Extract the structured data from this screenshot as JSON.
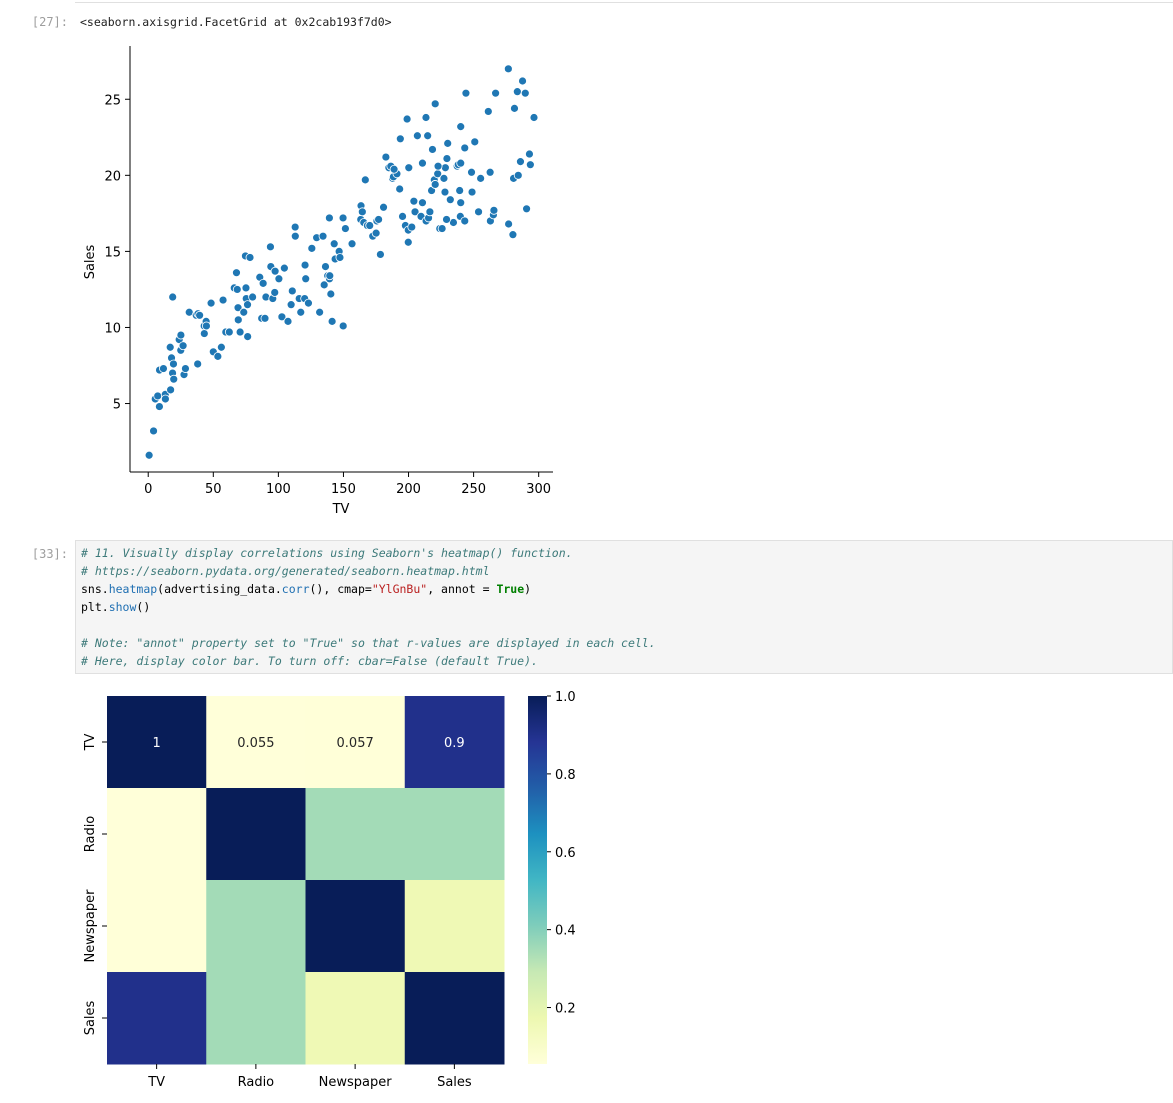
{
  "cells": {
    "out27_prompt": "[27]:",
    "out27_text": "<seaborn.axisgrid.FacetGrid at 0x2cab193f7d0>",
    "in33_prompt": "[33]:",
    "code": {
      "line1": "# 11. Visually display correlations using Seaborn's heatmap() function.",
      "line2": "# https://seaborn.pydata.org/generated/seaborn.heatmap.html",
      "line3": {
        "a": "sns.",
        "b": "heatmap",
        "c": "(advertising_data.",
        "d": "corr",
        "e": "(), cmap=",
        "f": "\"YlGnBu\"",
        "g": ", annot = ",
        "h": "True",
        "i": ")"
      },
      "line4": {
        "a": "plt.",
        "b": "show",
        "c": "()"
      },
      "line6": "# Note: \"annot\" property set to \"True\" so that r-values are displayed in each cell.",
      "line7": "# Here, display color bar. To turn off: cbar=False (default True)."
    }
  },
  "chart_data": [
    {
      "type": "scatter",
      "xlabel": "TV",
      "ylabel": "Sales",
      "xlim": [
        -14,
        311
      ],
      "ylim": [
        0.5,
        28.5
      ],
      "xticks": [
        0,
        50,
        100,
        150,
        200,
        250,
        300
      ],
      "yticks": [
        5,
        10,
        15,
        20,
        25
      ],
      "color": "#1f77b4",
      "points": [
        [
          0.7,
          1.6
        ],
        [
          4.1,
          3.2
        ],
        [
          5.4,
          5.3
        ],
        [
          7.3,
          5.5
        ],
        [
          8.6,
          4.8
        ],
        [
          8.7,
          7.2
        ],
        [
          11.7,
          7.3
        ],
        [
          13.1,
          5.6
        ],
        [
          13.2,
          5.3
        ],
        [
          16.9,
          8.7
        ],
        [
          17.2,
          5.9
        ],
        [
          17.9,
          8.0
        ],
        [
          18.7,
          7.0
        ],
        [
          19.4,
          7.6
        ],
        [
          19.6,
          6.6
        ],
        [
          18.8,
          12.0
        ],
        [
          23.8,
          9.2
        ],
        [
          25.0,
          8.5
        ],
        [
          25.1,
          9.5
        ],
        [
          26.8,
          8.8
        ],
        [
          27.5,
          6.9
        ],
        [
          28.6,
          7.3
        ],
        [
          31.5,
          11.0
        ],
        [
          36.9,
          10.8
        ],
        [
          38.0,
          7.6
        ],
        [
          38.2,
          10.9
        ],
        [
          39.5,
          10.8
        ],
        [
          43.0,
          10.1
        ],
        [
          43.1,
          9.6
        ],
        [
          44.5,
          10.4
        ],
        [
          44.7,
          10.1
        ],
        [
          48.3,
          11.6
        ],
        [
          50.0,
          8.4
        ],
        [
          53.5,
          8.1
        ],
        [
          56.2,
          8.7
        ],
        [
          57.5,
          11.8
        ],
        [
          59.6,
          9.7
        ],
        [
          62.3,
          9.7
        ],
        [
          66.1,
          12.6
        ],
        [
          67.8,
          13.6
        ],
        [
          68.4,
          12.5
        ],
        [
          69.0,
          11.3
        ],
        [
          69.2,
          10.5
        ],
        [
          70.6,
          9.7
        ],
        [
          73.4,
          11.0
        ],
        [
          74.7,
          14.7
        ],
        [
          75.1,
          12.6
        ],
        [
          75.3,
          11.9
        ],
        [
          76.3,
          11.5
        ],
        [
          76.4,
          9.4
        ],
        [
          78.2,
          14.6
        ],
        [
          80.2,
          12.0
        ],
        [
          85.7,
          13.3
        ],
        [
          87.2,
          10.6
        ],
        [
          88.3,
          12.9
        ],
        [
          89.7,
          10.6
        ],
        [
          90.4,
          12.0
        ],
        [
          93.9,
          15.3
        ],
        [
          94.2,
          14.0
        ],
        [
          95.7,
          11.9
        ],
        [
          97.2,
          12.3
        ],
        [
          97.5,
          13.7
        ],
        [
          100.4,
          13.2
        ],
        [
          102.7,
          10.7
        ],
        [
          104.6,
          13.9
        ],
        [
          107.4,
          10.4
        ],
        [
          109.8,
          11.5
        ],
        [
          110.7,
          12.4
        ],
        [
          112.9,
          16.6
        ],
        [
          113.0,
          16.0
        ],
        [
          116.0,
          11.9
        ],
        [
          117.2,
          11.0
        ],
        [
          120.2,
          11.9
        ],
        [
          120.5,
          14.1
        ],
        [
          121.0,
          13.2
        ],
        [
          123.1,
          11.6
        ],
        [
          125.7,
          15.2
        ],
        [
          129.4,
          15.9
        ],
        [
          131.7,
          11.0
        ],
        [
          134.3,
          16.0
        ],
        [
          135.2,
          12.8
        ],
        [
          136.2,
          14.0
        ],
        [
          137.9,
          13.4
        ],
        [
          139.2,
          17.2
        ],
        [
          139.3,
          13.2
        ],
        [
          139.5,
          13.4
        ],
        [
          140.3,
          12.2
        ],
        [
          141.3,
          10.4
        ],
        [
          142.9,
          15.5
        ],
        [
          143.6,
          14.5
        ],
        [
          146.7,
          15.0
        ],
        [
          147.3,
          14.6
        ],
        [
          149.7,
          17.2
        ],
        [
          149.8,
          10.1
        ],
        [
          151.5,
          16.5
        ],
        [
          156.6,
          15.5
        ],
        [
          163.3,
          17.1
        ],
        [
          163.5,
          18.0
        ],
        [
          164.5,
          17.6
        ],
        [
          165.6,
          16.9
        ],
        [
          166.8,
          19.7
        ],
        [
          168.4,
          16.7
        ],
        [
          170.2,
          16.7
        ],
        [
          172.5,
          16.0
        ],
        [
          175.1,
          16.2
        ],
        [
          175.7,
          17.0
        ],
        [
          177.0,
          17.1
        ],
        [
          178.4,
          14.8
        ],
        [
          180.8,
          17.9
        ],
        [
          182.6,
          21.2
        ],
        [
          184.9,
          20.5
        ],
        [
          186.4,
          20.6
        ],
        [
          187.8,
          19.8
        ],
        [
          188.4,
          19.9
        ],
        [
          191.1,
          20.1
        ],
        [
          193.2,
          19.1
        ],
        [
          193.7,
          22.4
        ],
        [
          195.4,
          17.3
        ],
        [
          197.6,
          16.7
        ],
        [
          198.9,
          23.7
        ],
        [
          199.8,
          16.4
        ],
        [
          199.8,
          15.6
        ],
        [
          202.5,
          16.6
        ],
        [
          204.1,
          18.3
        ],
        [
          205.0,
          17.6
        ],
        [
          206.8,
          22.6
        ],
        [
          209.6,
          17.3
        ],
        [
          210.7,
          18.2
        ],
        [
          210.8,
          20.8
        ],
        [
          213.4,
          23.8
        ],
        [
          213.5,
          17.0
        ],
        [
          214.7,
          22.6
        ],
        [
          215.4,
          17.2
        ],
        [
          216.4,
          17.6
        ],
        [
          217.7,
          19.0
        ],
        [
          219.8,
          19.7
        ],
        [
          220.3,
          19.4
        ],
        [
          220.5,
          19.4
        ],
        [
          222.4,
          20.1
        ],
        [
          224.0,
          16.5
        ],
        [
          225.8,
          16.5
        ],
        [
          227.2,
          19.8
        ],
        [
          228.0,
          18.9
        ],
        [
          228.3,
          20.5
        ],
        [
          229.5,
          21.1
        ],
        [
          230.1,
          22.1
        ],
        [
          232.1,
          18.4
        ],
        [
          234.5,
          16.9
        ],
        [
          237.4,
          20.6
        ],
        [
          238.2,
          20.7
        ],
        [
          239.3,
          19.0
        ],
        [
          239.8,
          17.3
        ],
        [
          240.1,
          20.8
        ],
        [
          240.1,
          18.2
        ],
        [
          243.2,
          21.8
        ],
        [
          248.4,
          20.2
        ],
        [
          248.8,
          18.9
        ],
        [
          250.9,
          22.2
        ],
        [
          253.8,
          17.6
        ],
        [
          255.4,
          19.8
        ],
        [
          261.3,
          24.2
        ],
        [
          262.7,
          20.2
        ],
        [
          262.9,
          17.0
        ],
        [
          265.2,
          17.4
        ],
        [
          265.6,
          17.7
        ],
        [
          266.9,
          25.4
        ],
        [
          276.7,
          27.0
        ],
        [
          276.9,
          16.8
        ],
        [
          280.2,
          16.1
        ],
        [
          280.7,
          19.8
        ],
        [
          281.4,
          24.4
        ],
        [
          283.6,
          25.5
        ],
        [
          284.3,
          20.0
        ],
        [
          286.0,
          20.9
        ],
        [
          287.6,
          26.2
        ],
        [
          289.7,
          25.4
        ],
        [
          290.7,
          17.8
        ],
        [
          292.9,
          21.4
        ],
        [
          293.6,
          20.7
        ],
        [
          296.4,
          23.8
        ],
        [
          240.1,
          23.2
        ],
        [
          243.2,
          17.0
        ],
        [
          218.4,
          21.7
        ],
        [
          210.7,
          20.8
        ],
        [
          200.2,
          20.5
        ],
        [
          220.5,
          24.7
        ],
        [
          244.1,
          25.4
        ],
        [
          188.9,
          20.4
        ],
        [
          229.2,
          17.1
        ],
        [
          222.7,
          20.6
        ]
      ]
    },
    {
      "type": "heatmap",
      "labels": [
        "TV",
        "Radio",
        "Newspaper",
        "Sales"
      ],
      "matrix": [
        [
          1,
          0.055,
          0.057,
          0.9
        ],
        [
          0.055,
          1,
          0.35,
          0.35
        ],
        [
          0.057,
          0.35,
          1,
          0.16
        ],
        [
          0.9,
          0.35,
          0.16,
          1
        ]
      ],
      "annotated_row": 0,
      "annotations": [
        "1",
        "0.055",
        "0.057",
        "0.9"
      ],
      "cmap": "YlGnBu",
      "colorbar_ticks": [
        0.2,
        0.4,
        0.6,
        0.8,
        1.0
      ],
      "colorbar_tick_labels": [
        "0.2",
        "0.4",
        "0.6",
        "0.8",
        "1.0"
      ],
      "vmin": 0.055,
      "vmax": 1.0
    }
  ]
}
